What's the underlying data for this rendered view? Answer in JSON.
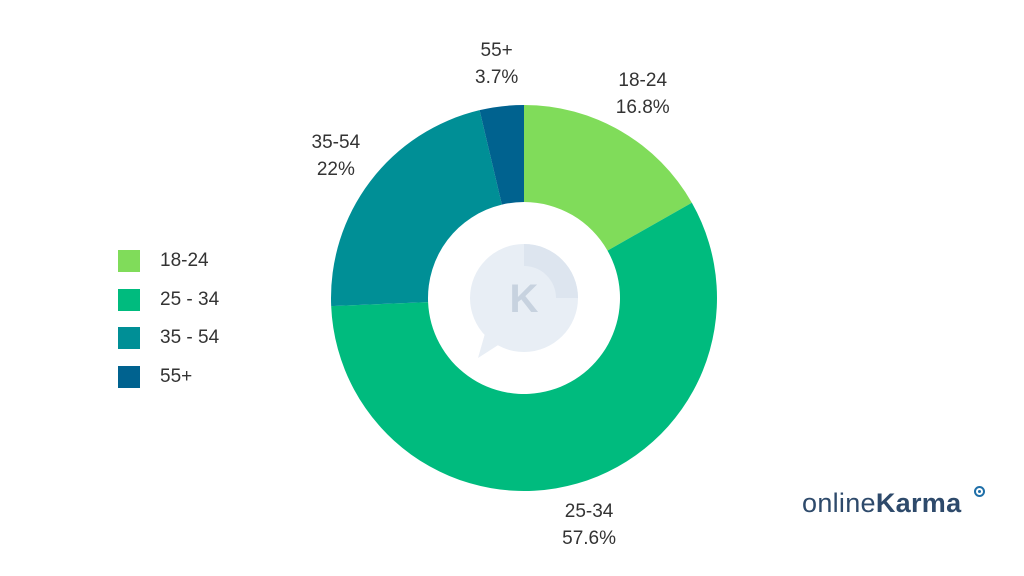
{
  "chart_data": {
    "type": "pie",
    "variant": "donut",
    "categories": [
      "18-24",
      "25-34",
      "35-54",
      "55+"
    ],
    "values": [
      16.8,
      57.6,
      22,
      3.7
    ],
    "slice_labels": [
      "18-24",
      "25-34",
      "35-54",
      "55+"
    ],
    "value_labels": [
      "16.8%",
      "57.6%",
      "22%",
      "3.7%"
    ],
    "colors": [
      "#80dc5a",
      "#00bb7e",
      "#008f96",
      "#00628f"
    ],
    "legend": {
      "placement": "left",
      "items": [
        "18-24",
        "25 - 34",
        "35 - 54",
        "55+"
      ]
    },
    "center_icon": "chat-bubble-k-logo-icon"
  },
  "brand": {
    "light": "online",
    "bold": "Karma"
  }
}
